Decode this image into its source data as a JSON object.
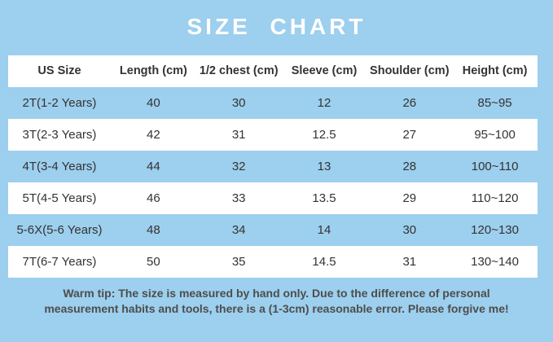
{
  "page": {
    "title": "SIZE CHART",
    "note": "Warm tip: The size is measured by hand only. Due to the difference of personal measurement habits and tools, there is a (1-3cm) reasonable error. Please forgive me!"
  },
  "colors": {
    "page_background": "#9DCFEE",
    "row_white": "#FFFFFF",
    "row_blue": "#9DCFEE",
    "title_text": "#FFFFFF",
    "table_text": "#333333",
    "note_text": "#4D4D4D"
  },
  "chart_data": {
    "type": "table",
    "title": "SIZE CHART",
    "headers": [
      "US Size",
      "Length (cm)",
      "1/2 chest (cm)",
      "Sleeve (cm)",
      "Shoulder (cm)",
      "Height (cm)"
    ],
    "rows": [
      [
        "2T(1-2 Years)",
        "40",
        "30",
        "12",
        "26",
        "85~95"
      ],
      [
        "3T(2-3 Years)",
        "42",
        "31",
        "12.5",
        "27",
        "95~100"
      ],
      [
        "4T(3-4 Years)",
        "44",
        "32",
        "13",
        "28",
        "100~110"
      ],
      [
        "5T(4-5 Years)",
        "46",
        "33",
        "13.5",
        "29",
        "110~120"
      ],
      [
        "5-6X(5-6 Years)",
        "48",
        "34",
        "14",
        "30",
        "120~130"
      ],
      [
        "7T(6-7 Years)",
        "50",
        "35",
        "14.5",
        "31",
        "130~140"
      ]
    ],
    "layout": {
      "striping": "header white, then rows alternate blue/white starting with blue",
      "columns": 6,
      "legend": "none",
      "grid": "off"
    }
  }
}
